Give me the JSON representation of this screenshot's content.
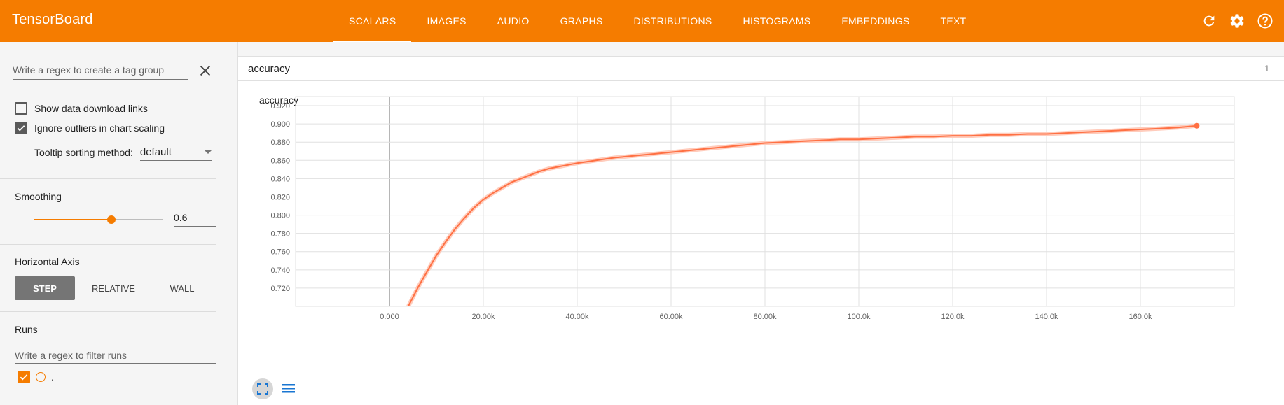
{
  "app": {
    "title": "TensorBoard"
  },
  "tabs": [
    {
      "label": "SCALARS"
    },
    {
      "label": "IMAGES"
    },
    {
      "label": "AUDIO"
    },
    {
      "label": "GRAPHS"
    },
    {
      "label": "DISTRIBUTIONS"
    },
    {
      "label": "HISTOGRAMS"
    },
    {
      "label": "EMBEDDINGS"
    },
    {
      "label": "TEXT"
    }
  ],
  "active_tab": "SCALARS",
  "topbar_icons": [
    "refresh-icon",
    "settings-gear-icon",
    "help-icon"
  ],
  "colors": {
    "brand": "#f57c00",
    "run_line": "#ff7043",
    "run_raw": "#ffccbc"
  },
  "sidebar": {
    "tag_regex_placeholder": "Write a regex to create a tag group",
    "show_download_label": "Show data download links",
    "show_download_checked": false,
    "ignore_outliers_label": "Ignore outliers in chart scaling",
    "ignore_outliers_checked": true,
    "tooltip_label": "Tooltip sorting method:",
    "tooltip_value": "default",
    "smoothing_label": "Smoothing",
    "smoothing_value": "0.6",
    "smoothing_fraction": 0.6,
    "horizontal_axis_label": "Horizontal Axis",
    "axis_options": [
      "STEP",
      "RELATIVE",
      "WALL"
    ],
    "axis_selected": "STEP",
    "runs_label": "Runs",
    "runs_filter_placeholder": "Write a regex to filter runs",
    "runs": [
      {
        "name": ".",
        "checked": true
      }
    ]
  },
  "main": {
    "tag_name": "accuracy",
    "tag_count": "1",
    "card_title": "accuracy"
  },
  "chart_data": {
    "type": "line",
    "title": "accuracy",
    "xlabel": "",
    "ylabel": "",
    "xlim": [
      -20000,
      180000
    ],
    "ylim": [
      0.7,
      0.93
    ],
    "x_ticks": [
      0,
      20000,
      40000,
      60000,
      80000,
      100000,
      120000,
      140000,
      160000
    ],
    "x_tick_labels": [
      "0.000",
      "20.00k",
      "40.00k",
      "60.00k",
      "80.00k",
      "100.0k",
      "120.0k",
      "140.0k",
      "160.0k"
    ],
    "y_ticks": [
      0.72,
      0.74,
      0.76,
      0.78,
      0.8,
      0.82,
      0.84,
      0.86,
      0.88,
      0.9,
      0.92
    ],
    "y_tick_labels": [
      "0.720",
      "0.740",
      "0.760",
      "0.780",
      "0.800",
      "0.820",
      "0.840",
      "0.860",
      "0.880",
      "0.900",
      "0.920"
    ],
    "grid": true,
    "series": [
      {
        "x": [
          4000,
          6000,
          8000,
          10000,
          12000,
          14000,
          16000,
          18000,
          20000,
          22000,
          24000,
          26000,
          28000,
          30000,
          32000,
          34000,
          36000,
          38000,
          40000,
          44000,
          48000,
          52000,
          56000,
          60000,
          64000,
          68000,
          72000,
          76000,
          80000,
          84000,
          88000,
          92000,
          96000,
          100000,
          104000,
          108000,
          112000,
          116000,
          120000,
          124000,
          128000,
          132000,
          136000,
          140000,
          144000,
          148000,
          152000,
          156000,
          160000,
          164000,
          168000,
          172000
        ],
        "values": [
          0.7,
          0.72,
          0.738,
          0.756,
          0.771,
          0.785,
          0.797,
          0.808,
          0.817,
          0.824,
          0.83,
          0.836,
          0.84,
          0.844,
          0.848,
          0.851,
          0.853,
          0.855,
          0.857,
          0.86,
          0.863,
          0.865,
          0.867,
          0.869,
          0.871,
          0.873,
          0.875,
          0.877,
          0.879,
          0.88,
          0.881,
          0.882,
          0.883,
          0.883,
          0.884,
          0.885,
          0.886,
          0.886,
          0.887,
          0.887,
          0.888,
          0.888,
          0.889,
          0.889,
          0.89,
          0.891,
          0.892,
          0.893,
          0.894,
          0.895,
          0.896,
          0.898
        ]
      }
    ]
  }
}
